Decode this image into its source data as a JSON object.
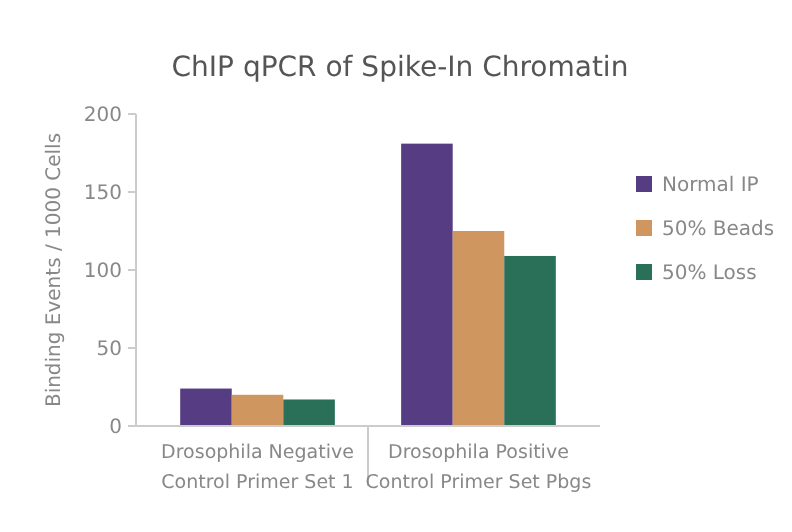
{
  "chart_data": {
    "type": "bar",
    "title": "ChIP qPCR of Spike-In Chromatin",
    "ylabel": "Binding Events / 1000 Cells",
    "categories": [
      "Drosophila Negative\nControl Primer Set 1",
      "Drosophila Positive\nControl Primer Set Pbgs"
    ],
    "series": [
      {
        "name": "Normal IP",
        "color": "#553c83",
        "values": [
          24,
          181
        ]
      },
      {
        "name": "50% Beads",
        "color": "#cf9660",
        "values": [
          20,
          125
        ]
      },
      {
        "name": "50% Loss",
        "color": "#2a6f58",
        "values": [
          17,
          109
        ]
      }
    ],
    "ylim": [
      0,
      200
    ],
    "yticks": [
      0,
      50,
      100,
      150,
      200
    ],
    "grid": false,
    "legend": "right"
  }
}
